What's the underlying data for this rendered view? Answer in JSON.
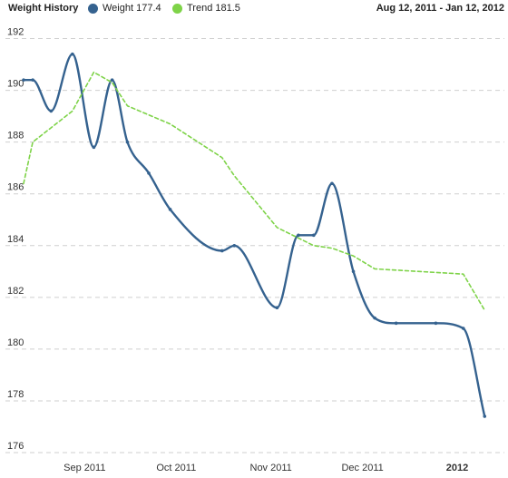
{
  "header": {
    "title": "Weight History",
    "legend": [
      {
        "name": "Weight",
        "value": "177.4",
        "color": "#35628f"
      },
      {
        "name": "Trend",
        "value": "181.5",
        "color": "#7ed348"
      }
    ],
    "date_range": "Aug 12, 2011 - Jan 12, 2012"
  },
  "chart_data": {
    "type": "line",
    "x_type": "date",
    "xlim": [
      "2011-08-12",
      "2012-01-12"
    ],
    "ylim": [
      176,
      193
    ],
    "y_ticks": [
      176,
      178,
      180,
      182,
      184,
      186,
      188,
      190,
      192
    ],
    "x_ticks": [
      {
        "label": "Sep 2011",
        "date": "2011-09-01",
        "bold": false
      },
      {
        "label": "Oct 2011",
        "date": "2011-10-01",
        "bold": false
      },
      {
        "label": "Nov 2011",
        "date": "2011-11-01",
        "bold": false
      },
      {
        "label": "Dec 2011",
        "date": "2011-12-01",
        "bold": false
      },
      {
        "label": "2012",
        "date": "2012-01-01",
        "bold": true
      }
    ],
    "grid": true,
    "series": [
      {
        "name": "Weight",
        "color": "#35628f",
        "style": "solid",
        "points": [
          {
            "x": "2011-08-12",
            "y": 190.4
          },
          {
            "x": "2011-08-15",
            "y": 190.4
          },
          {
            "x": "2011-08-21",
            "y": 189.2
          },
          {
            "x": "2011-08-28",
            "y": 191.4
          },
          {
            "x": "2011-09-04",
            "y": 187.8
          },
          {
            "x": "2011-09-10",
            "y": 190.4
          },
          {
            "x": "2011-09-15",
            "y": 188.0
          },
          {
            "x": "2011-09-22",
            "y": 186.8
          },
          {
            "x": "2011-09-29",
            "y": 185.4
          },
          {
            "x": "2011-10-16",
            "y": 183.8
          },
          {
            "x": "2011-10-20",
            "y": 184.0
          },
          {
            "x": "2011-11-03",
            "y": 181.6
          },
          {
            "x": "2011-11-10",
            "y": 184.4
          },
          {
            "x": "2011-11-15",
            "y": 184.4
          },
          {
            "x": "2011-11-21",
            "y": 186.4
          },
          {
            "x": "2011-11-28",
            "y": 183.0
          },
          {
            "x": "2011-12-05",
            "y": 181.2
          },
          {
            "x": "2011-12-12",
            "y": 181.0
          },
          {
            "x": "2011-12-25",
            "y": 181.0
          },
          {
            "x": "2012-01-03",
            "y": 180.8
          },
          {
            "x": "2012-01-10",
            "y": 177.4
          }
        ]
      },
      {
        "name": "Trend",
        "color": "#7ed348",
        "style": "dashed",
        "points": [
          {
            "x": "2011-08-12",
            "y": 186.4
          },
          {
            "x": "2011-08-15",
            "y": 188.0
          },
          {
            "x": "2011-08-28",
            "y": 189.2
          },
          {
            "x": "2011-09-04",
            "y": 190.7
          },
          {
            "x": "2011-09-10",
            "y": 190.3
          },
          {
            "x": "2011-09-15",
            "y": 189.4
          },
          {
            "x": "2011-09-29",
            "y": 188.7
          },
          {
            "x": "2011-10-16",
            "y": 187.4
          },
          {
            "x": "2011-10-20",
            "y": 186.7
          },
          {
            "x": "2011-11-03",
            "y": 184.7
          },
          {
            "x": "2011-11-15",
            "y": 184.0
          },
          {
            "x": "2011-11-21",
            "y": 183.9
          },
          {
            "x": "2011-11-28",
            "y": 183.6
          },
          {
            "x": "2011-12-05",
            "y": 183.1
          },
          {
            "x": "2012-01-03",
            "y": 182.9
          },
          {
            "x": "2012-01-10",
            "y": 181.5
          }
        ]
      }
    ]
  }
}
